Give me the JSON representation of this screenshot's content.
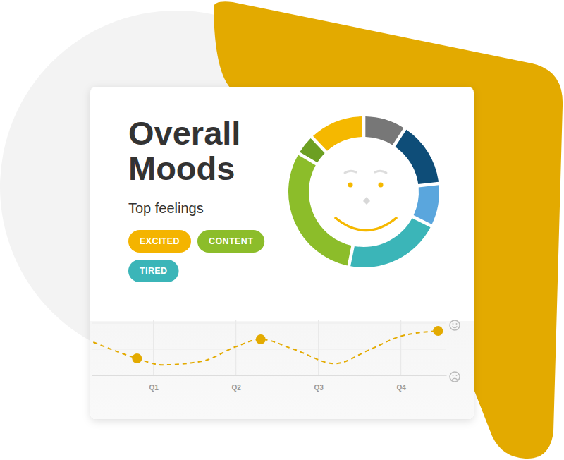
{
  "chart_data": [
    {
      "type": "donut",
      "title": "Overall Moods",
      "subtitle": "Top feelings",
      "annotations": [
        {
          "text": "EXCITED",
          "color": "#f4b400"
        },
        {
          "text": "CONTENT",
          "color": "#8cbd2a"
        },
        {
          "text": "TIRED",
          "color": "#3bb5b8"
        }
      ],
      "values": [
        9,
        14,
        9,
        21,
        31,
        4,
        12
      ],
      "colors": [
        "#777777",
        "#0e4d78",
        "#5aa6dd",
        "#3bb5b8",
        "#8cbd2a",
        "#6c9f22",
        "#f5b800"
      ]
    },
    {
      "type": "line",
      "xlim": [
        0.25,
        4.55
      ],
      "xticks": [
        {
          "value": 1,
          "label": "Q1"
        },
        {
          "value": 2,
          "label": "Q2"
        },
        {
          "value": 3,
          "label": "Q3"
        },
        {
          "value": 4,
          "label": "Q4"
        }
      ],
      "ylim": [
        0,
        2
      ],
      "yticks": [
        0,
        1,
        2
      ],
      "grid": true,
      "tick_labels": "x",
      "series": [
        {
          "color": "#e3aa00",
          "line_style": "dashed",
          "x": [
            0.27,
            0.8,
            1.1,
            1.6,
            2.0,
            2.3,
            2.7,
            3.2,
            3.6,
            4.0,
            4.45
          ],
          "values": [
            1.27,
            0.65,
            0.4,
            0.55,
            1.1,
            1.38,
            1.0,
            0.45,
            0.95,
            1.5,
            1.7
          ]
        },
        {
          "type": "scatter",
          "color": "#e3aa00",
          "marker": "circle",
          "x": [
            0.8,
            2.3,
            4.45
          ],
          "values": [
            0.65,
            1.38,
            1.7
          ]
        }
      ]
    }
  ]
}
